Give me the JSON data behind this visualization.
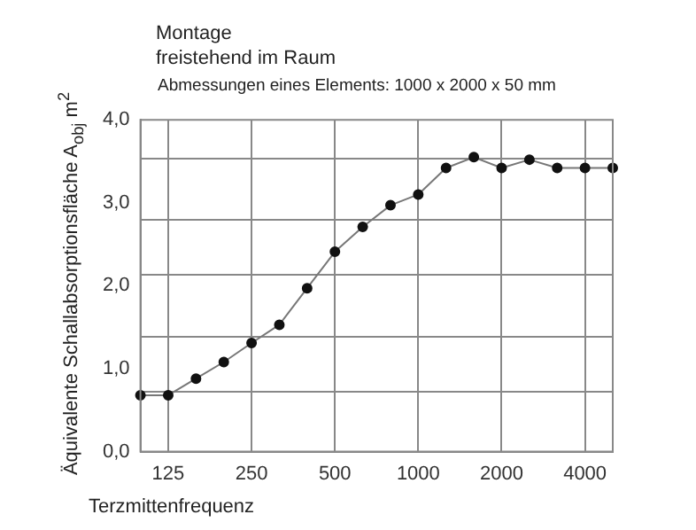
{
  "chart_data": {
    "type": "line",
    "title": "Montage\nfreistehend im Raum",
    "subtitle": "Abmessungen eines Elements: 1000 x 2000 x 50 mm",
    "xlabel": "Terzmittenfrequenz",
    "ylabel": "Äquivalente Schallabsorptionsfläche A$_{obj}$ m$^{2}$",
    "categories": [
      null,
      "125",
      null,
      null,
      "250",
      null,
      null,
      "500",
      null,
      null,
      "1000",
      null,
      null,
      "2000",
      null,
      null,
      "4000",
      null
    ],
    "series": [
      {
        "color": "#777777",
        "values": [
          0.68,
          0.68,
          0.88,
          1.08,
          1.31,
          1.53,
          1.97,
          2.41,
          2.71,
          2.97,
          3.1,
          3.42,
          3.55,
          3.42,
          3.52,
          3.42,
          3.42,
          3.42
        ]
      }
    ],
    "ylim": [
      0,
      4
    ],
    "yticks": [
      {
        "value": 0,
        "label": "0,0"
      },
      {
        "value": 0.72,
        "label": null
      },
      {
        "value": 1,
        "label": "1,0"
      },
      {
        "value": 1.38,
        "label": null
      },
      {
        "value": 2,
        "label": "2,0"
      },
      {
        "value": 2.13,
        "label": null
      },
      {
        "value": 2.79,
        "label": null
      },
      {
        "value": 3,
        "label": "3,0"
      },
      {
        "value": 3.53,
        "label": null
      },
      {
        "value": 4,
        "label": "4,0"
      }
    ],
    "grid": true,
    "marker": "circle",
    "line_style": "solid"
  }
}
